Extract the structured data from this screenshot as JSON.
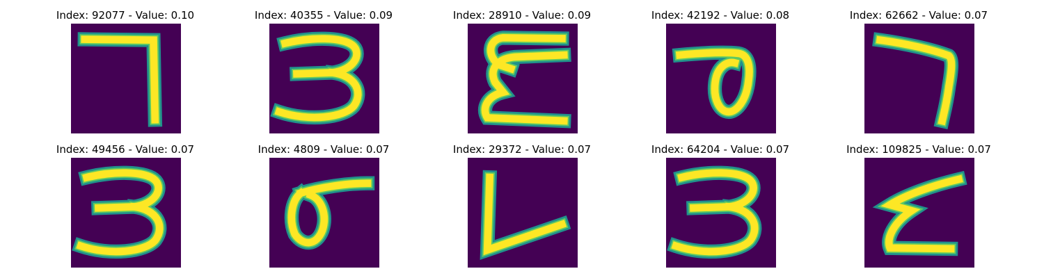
{
  "colors": {
    "background_digit": "#440154",
    "stroke_edge": "#21918c",
    "stroke_mid": "#5ec962",
    "stroke_core": "#fde725",
    "page_background": "#ffffff"
  },
  "panels": [
    {
      "title": "Index: 92077 - Value: 0.10",
      "digit_shape": "seven-sharp"
    },
    {
      "title": "Index: 40355 - Value: 0.09",
      "digit_shape": "three"
    },
    {
      "title": "Index: 28910 - Value: 0.09",
      "digit_shape": "three-mirrored"
    },
    {
      "title": "Index: 42192 - Value: 0.08",
      "digit_shape": "loop-hook"
    },
    {
      "title": "Index: 62662 - Value: 0.07",
      "digit_shape": "seven-curved"
    },
    {
      "title": "Index: 49456 - Value: 0.07",
      "digit_shape": "three"
    },
    {
      "title": "Index: 4809 - Value: 0.07",
      "digit_shape": "loop-flag"
    },
    {
      "title": "Index: 29372 - Value: 0.07",
      "digit_shape": "l-shape"
    },
    {
      "title": "Index: 64204 - Value: 0.07",
      "digit_shape": "three"
    },
    {
      "title": "Index: 109825 - Value: 0.07",
      "digit_shape": "z-shape"
    }
  ]
}
